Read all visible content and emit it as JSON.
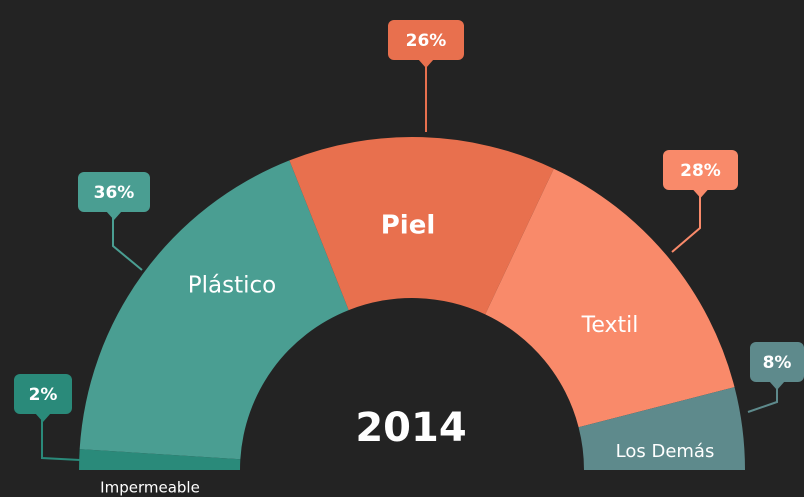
{
  "chart_data": {
    "type": "semi-donut",
    "categories": [
      "Impermeable",
      "Plástico",
      "Piel",
      "Textil",
      "Los Demás"
    ],
    "values": [
      2,
      36,
      26,
      28,
      8
    ],
    "value_labels": [
      "2%",
      "36%",
      "26%",
      "28%",
      "8%"
    ],
    "colors": [
      "#2a8a7a",
      "#4a9e92",
      "#e8704e",
      "#f98a6a",
      "#5e8a8c"
    ],
    "center_label": "2014"
  }
}
